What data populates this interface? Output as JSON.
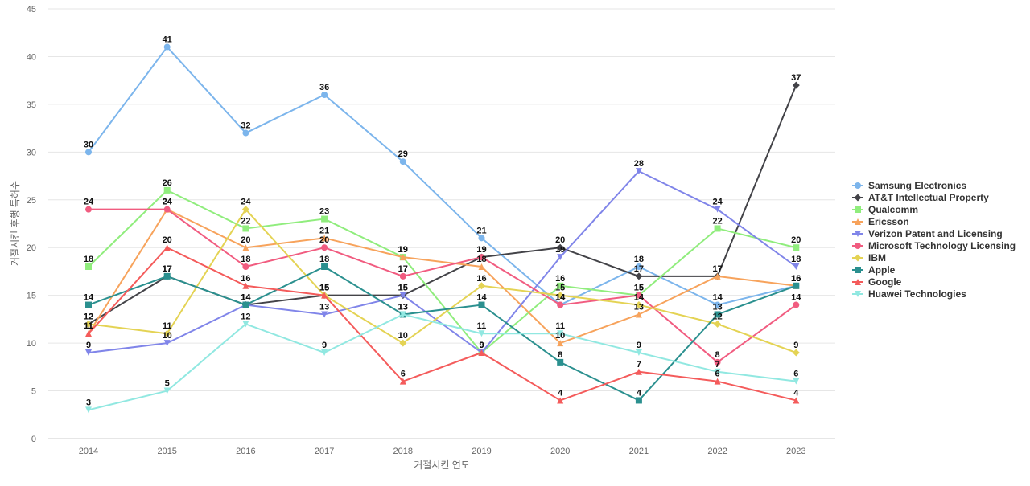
{
  "chart_data": {
    "type": "line",
    "title": "",
    "xlabel": "거절시킨 연도",
    "ylabel": "거절시킨 후행 특허수",
    "x": [
      "2014",
      "2015",
      "2016",
      "2017",
      "2018",
      "2019",
      "2020",
      "2021",
      "2022",
      "2023"
    ],
    "ylim": [
      0,
      45
    ],
    "yticks": [
      0,
      5,
      10,
      15,
      20,
      25,
      30,
      35,
      40,
      45
    ],
    "grid": true,
    "legend_position": "right",
    "series": [
      {
        "name": "Samsung Electronics",
        "color": "#7cb5ec",
        "marker": "circle",
        "values": [
          30,
          41,
          32,
          36,
          29,
          21,
          14,
          18,
          14,
          16
        ]
      },
      {
        "name": "AT&T Intellectual Property",
        "color": "#434348",
        "marker": "diamond",
        "values": [
          12,
          17,
          14,
          15,
          15,
          19,
          20,
          17,
          17,
          37
        ]
      },
      {
        "name": "Qualcomm",
        "color": "#90ed7d",
        "marker": "square",
        "values": [
          18,
          26,
          22,
          23,
          19,
          9,
          16,
          15,
          22,
          20
        ]
      },
      {
        "name": "Ericsson",
        "color": "#f7a35c",
        "marker": "triangle",
        "values": [
          11,
          24,
          20,
          21,
          19,
          18,
          10,
          13,
          17,
          16
        ]
      },
      {
        "name": "Verizon Patent and Licensing",
        "color": "#8085e9",
        "marker": "triangle-down",
        "values": [
          9,
          10,
          14,
          13,
          15,
          9,
          19,
          28,
          24,
          18
        ]
      },
      {
        "name": "Microsoft Technology Licensing",
        "color": "#f15c80",
        "marker": "circle",
        "values": [
          24,
          24,
          18,
          20,
          17,
          19,
          14,
          15,
          8,
          14
        ]
      },
      {
        "name": "IBM",
        "color": "#e4d354",
        "marker": "diamond",
        "values": [
          12,
          11,
          24,
          15,
          10,
          16,
          15,
          14,
          12,
          9
        ]
      },
      {
        "name": "Apple",
        "color": "#2b908f",
        "marker": "square",
        "values": [
          14,
          17,
          14,
          18,
          13,
          14,
          8,
          4,
          13,
          16
        ]
      },
      {
        "name": "Google",
        "color": "#f45b5b",
        "marker": "triangle",
        "values": [
          11,
          20,
          16,
          15,
          6,
          9,
          4,
          7,
          6,
          4
        ]
      },
      {
        "name": "Huawei Technologies",
        "color": "#91e8e1",
        "marker": "triangle-down",
        "values": [
          3,
          5,
          12,
          9,
          13,
          11,
          11,
          9,
          7,
          6
        ]
      }
    ]
  }
}
